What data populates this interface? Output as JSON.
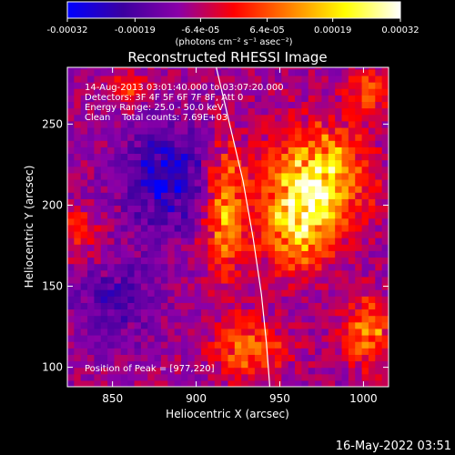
{
  "chart_data": {
    "type": "heatmap",
    "title": "Reconstructed RHESSI Image",
    "xlabel": "Heliocentric X (arcsec)",
    "ylabel": "Heliocentric Y (arcsec)",
    "xlim": [
      823,
      1015
    ],
    "ylim": [
      88,
      285
    ],
    "x_ticks": [
      850,
      900,
      950,
      1000
    ],
    "y_ticks": [
      100,
      150,
      200,
      250
    ],
    "x_tick_labels": [
      "850",
      "900",
      "950",
      "1000"
    ],
    "y_tick_labels": [
      "100",
      "150",
      "200",
      "250"
    ],
    "colorbar": {
      "min": -0.00032,
      "max": 0.00032,
      "tick_values": [
        -0.00032,
        -0.00019,
        -6.4e-05,
        6.4e-05,
        0.00019,
        0.00032
      ],
      "tick_labels": [
        "-0.00032",
        "-0.00019",
        "-6.4e-05",
        "6.4e-05",
        "0.00019",
        "0.00032"
      ],
      "units_label": "(photons cm⁻² s⁻¹ asec⁻²)",
      "colors": [
        "#0000ff",
        "#3c00a0",
        "#8a00a8",
        "#ff0000",
        "#ff8000",
        "#ffff00",
        "#ffffff"
      ]
    },
    "annotations": [
      "14-Aug-2013 03:01:40.000 to 03:07:20.000",
      "Detectors: 3F 4F 5F 6F 7F 8F, Att 0",
      "Energy Range: 25.0 - 50.0 keV",
      "Clean    Total counts: 7.69E+03"
    ],
    "peak_label": "Position of Peak = [977,220]",
    "peak": [
      977,
      220
    ],
    "limb_curve": {
      "x": [
        912,
        920,
        928,
        934,
        939,
        942,
        944
      ],
      "y": [
        285,
        250,
        215,
        180,
        145,
        115,
        88
      ]
    },
    "regions": [
      {
        "x": 970,
        "y": 215,
        "sx": 28,
        "sy": 30,
        "v": 0.0003
      },
      {
        "x": 958,
        "y": 185,
        "sx": 22,
        "sy": 25,
        "v": 0.00024
      },
      {
        "x": 915,
        "y": 195,
        "sx": 12,
        "sy": 40,
        "v": 0.00022
      },
      {
        "x": 930,
        "y": 110,
        "sx": 20,
        "sy": 18,
        "v": 0.00018
      },
      {
        "x": 1000,
        "y": 120,
        "sx": 14,
        "sy": 20,
        "v": 0.0002
      },
      {
        "x": 1000,
        "y": 268,
        "sx": 12,
        "sy": 12,
        "v": 0.00016
      },
      {
        "x": 860,
        "y": 270,
        "sx": 14,
        "sy": 10,
        "v": 0.0001
      },
      {
        "x": 830,
        "y": 180,
        "sx": 12,
        "sy": 14,
        "v": 0.00012
      },
      {
        "x": 880,
        "y": 215,
        "sx": 25,
        "sy": 30,
        "v": -0.00018
      },
      {
        "x": 850,
        "y": 140,
        "sx": 25,
        "sy": 25,
        "v": -0.0001
      }
    ]
  },
  "footer": {
    "date": "16-May-2022 03:51"
  }
}
